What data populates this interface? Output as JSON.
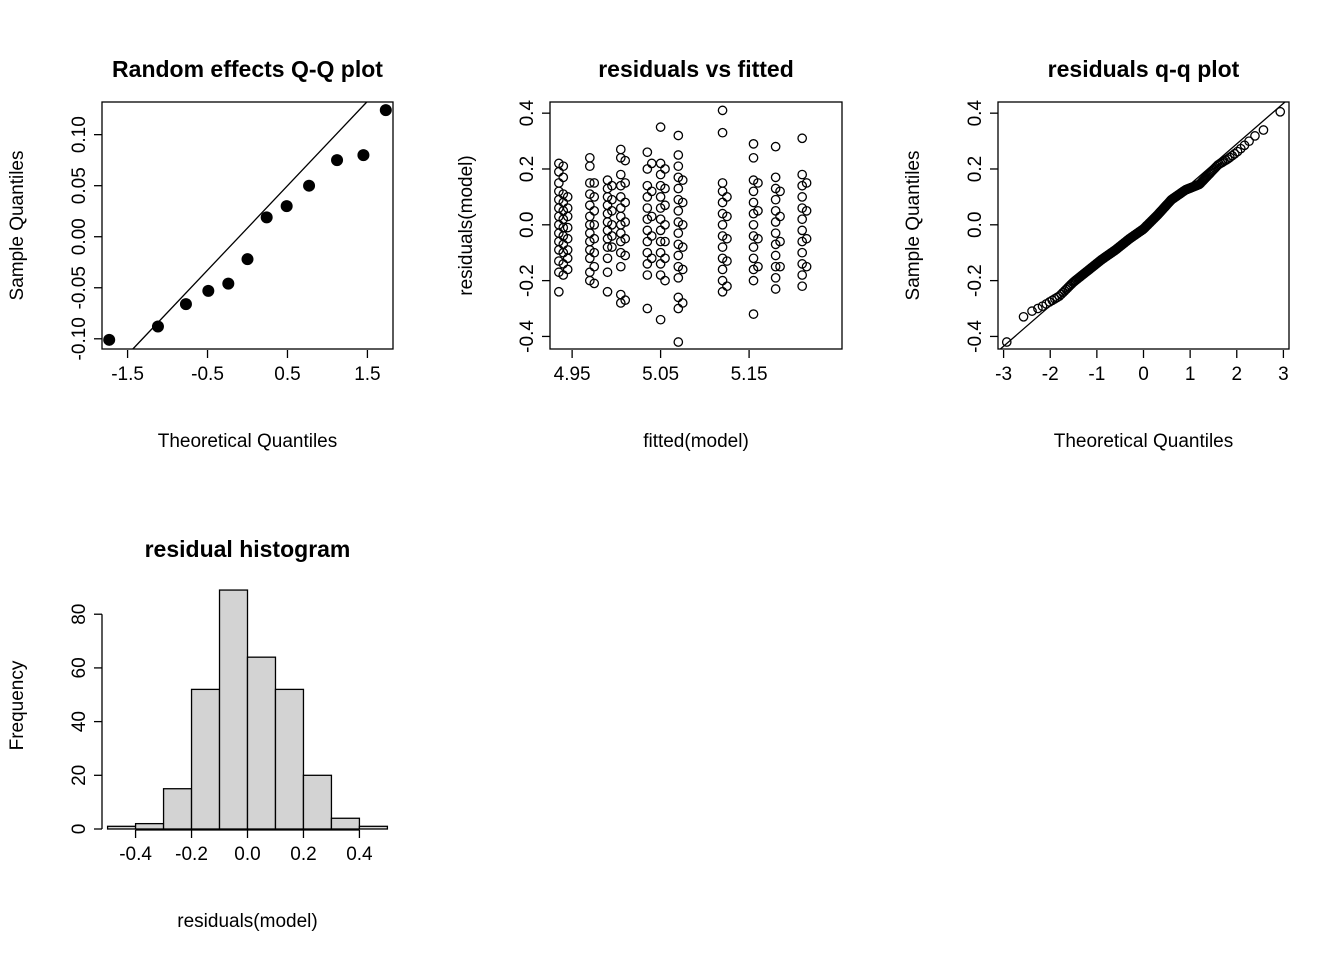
{
  "chart_data": [
    {
      "type": "scatter",
      "title": "Random effects Q-Q plot",
      "xlabel": "Theoretical Quantiles",
      "ylabel": "Sample Quantiles",
      "xlim": [
        -1.82,
        1.82
      ],
      "ylim": [
        -0.11,
        0.132
      ],
      "xticks": [
        -1.5,
        -0.5,
        0.5,
        1.5
      ],
      "xtick_labels": [
        "-1.5",
        "-0.5",
        "0.5",
        "1.5"
      ],
      "yticks": [
        -0.1,
        -0.05,
        0.0,
        0.05,
        0.1
      ],
      "ytick_labels": [
        "-0.10",
        "-0.05",
        "0.00",
        "0.05",
        "0.10"
      ],
      "point_style": "filled",
      "points": [
        {
          "x": -1.73,
          "y": -0.101
        },
        {
          "x": -1.12,
          "y": -0.088
        },
        {
          "x": -0.77,
          "y": -0.066
        },
        {
          "x": -0.49,
          "y": -0.053
        },
        {
          "x": -0.24,
          "y": -0.046
        },
        {
          "x": 0.0,
          "y": -0.022
        },
        {
          "x": 0.24,
          "y": 0.019
        },
        {
          "x": 0.49,
          "y": 0.03
        },
        {
          "x": 0.77,
          "y": 0.05
        },
        {
          "x": 1.12,
          "y": 0.075
        },
        {
          "x": 1.45,
          "y": 0.08
        },
        {
          "x": 1.73,
          "y": 0.124
        }
      ],
      "reference_line": {
        "intercept": 0.0086,
        "slope": 0.0827
      }
    },
    {
      "type": "scatter",
      "title": "residuals vs fitted",
      "xlabel": "fitted(model)",
      "ylabel": "residuals(model)",
      "xlim": [
        4.925,
        5.255
      ],
      "ylim": [
        -0.445,
        0.44
      ],
      "xticks": [
        4.95,
        5.05,
        5.15
      ],
      "xtick_labels": [
        "4.95",
        "5.05",
        "5.15"
      ],
      "yticks": [
        -0.4,
        -0.2,
        0.0,
        0.2,
        0.4
      ],
      "ytick_labels": [
        "-0.4",
        "-0.2",
        "0.0",
        "0.2",
        "0.4"
      ],
      "point_style": "open",
      "groups": [
        {
          "x": 4.935,
          "y": [
            0.22,
            0.19,
            0.15,
            0.12,
            0.09,
            0.06,
            0.03,
            0.0,
            -0.03,
            -0.06,
            -0.09,
            -0.13,
            -0.17,
            -0.24
          ]
        },
        {
          "x": 4.94,
          "y": [
            0.21,
            0.17,
            0.11,
            0.08,
            0.05,
            0.02,
            -0.01,
            -0.04,
            -0.07,
            -0.1,
            -0.14,
            -0.18
          ]
        },
        {
          "x": 4.945,
          "y": [
            0.1,
            0.06,
            0.03,
            -0.01,
            -0.05,
            -0.09,
            -0.12,
            -0.16
          ]
        },
        {
          "x": 4.97,
          "y": [
            0.24,
            0.21,
            0.15,
            0.11,
            0.07,
            0.03,
            0.0,
            -0.03,
            -0.06,
            -0.09,
            -0.12,
            -0.17,
            -0.2
          ]
        },
        {
          "x": 4.975,
          "y": [
            0.15,
            0.1,
            0.05,
            0.0,
            -0.05,
            -0.1,
            -0.15,
            -0.21
          ]
        },
        {
          "x": 4.99,
          "y": [
            0.16,
            0.13,
            0.1,
            0.07,
            0.04,
            0.01,
            -0.02,
            -0.05,
            -0.08,
            -0.12,
            -0.17,
            -0.24
          ]
        },
        {
          "x": 4.995,
          "y": [
            0.14,
            0.09,
            0.05,
            0.0,
            -0.04,
            -0.08
          ]
        },
        {
          "x": 5.005,
          "y": [
            0.27,
            0.24,
            0.18,
            0.14,
            0.1,
            0.06,
            0.03,
            0.0,
            -0.03,
            -0.06,
            -0.1,
            -0.15,
            -0.25,
            -0.28
          ]
        },
        {
          "x": 5.01,
          "y": [
            0.23,
            0.15,
            0.08,
            0.01,
            -0.05,
            -0.11,
            -0.27
          ]
        },
        {
          "x": 5.035,
          "y": [
            0.26,
            0.2,
            0.14,
            0.1,
            0.06,
            0.02,
            -0.02,
            -0.06,
            -0.1,
            -0.14,
            -0.18,
            -0.3
          ]
        },
        {
          "x": 5.04,
          "y": [
            0.22,
            0.12,
            0.03,
            -0.04,
            -0.12
          ]
        },
        {
          "x": 5.05,
          "y": [
            0.35,
            0.22,
            0.18,
            0.14,
            0.1,
            0.06,
            0.02,
            -0.02,
            -0.06,
            -0.1,
            -0.14,
            -0.18,
            -0.34
          ]
        },
        {
          "x": 5.055,
          "y": [
            0.2,
            0.13,
            0.07,
            0.0,
            -0.06,
            -0.12,
            -0.2
          ]
        },
        {
          "x": 5.07,
          "y": [
            0.32,
            0.25,
            0.21,
            0.17,
            0.13,
            0.09,
            0.05,
            0.01,
            -0.03,
            -0.07,
            -0.11,
            -0.15,
            -0.19,
            -0.26,
            -0.3,
            -0.42
          ]
        },
        {
          "x": 5.075,
          "y": [
            0.16,
            0.08,
            0.0,
            -0.08,
            -0.16,
            -0.28
          ]
        },
        {
          "x": 5.12,
          "y": [
            0.41,
            0.33,
            0.15,
            0.12,
            0.08,
            0.04,
            0.0,
            -0.04,
            -0.08,
            -0.12,
            -0.16,
            -0.2,
            -0.24
          ]
        },
        {
          "x": 5.125,
          "y": [
            0.1,
            0.03,
            -0.05,
            -0.13,
            -0.22
          ]
        },
        {
          "x": 5.155,
          "y": [
            0.29,
            0.24,
            0.16,
            0.12,
            0.08,
            0.04,
            0.0,
            -0.04,
            -0.08,
            -0.12,
            -0.16,
            -0.2,
            -0.32
          ]
        },
        {
          "x": 5.16,
          "y": [
            0.15,
            0.05,
            -0.05,
            -0.15
          ]
        },
        {
          "x": 5.18,
          "y": [
            0.28,
            0.17,
            0.13,
            0.09,
            0.05,
            0.01,
            -0.03,
            -0.07,
            -0.11,
            -0.15,
            -0.19,
            -0.23
          ]
        },
        {
          "x": 5.185,
          "y": [
            0.12,
            0.03,
            -0.06,
            -0.15
          ]
        },
        {
          "x": 5.21,
          "y": [
            0.31,
            0.18,
            0.14,
            0.1,
            0.06,
            0.02,
            -0.02,
            -0.06,
            -0.1,
            -0.14,
            -0.18,
            -0.22
          ]
        },
        {
          "x": 5.215,
          "y": [
            0.15,
            0.05,
            -0.05,
            -0.15
          ]
        }
      ]
    },
    {
      "type": "scatter",
      "title": "residuals q-q plot",
      "xlabel": "Theoretical Quantiles",
      "ylabel": "Sample Quantiles",
      "xlim": [
        -3.12,
        3.12
      ],
      "ylim": [
        -0.445,
        0.44
      ],
      "xticks": [
        -3,
        -2,
        -1,
        0,
        1,
        2,
        3
      ],
      "xtick_labels": [
        "-3",
        "-2",
        "-1",
        "0",
        "1",
        "2",
        "3"
      ],
      "yticks": [
        -0.4,
        -0.2,
        0.0,
        0.2,
        0.4
      ],
      "ytick_labels": [
        "-0.4",
        "-0.2",
        "0.0",
        "0.2",
        "0.4"
      ],
      "point_style": "open",
      "n_points": 297,
      "sample_quantile_knots": {
        "z": [
          -2.93,
          -2.62,
          -2.4,
          -2.2,
          -2.0,
          -1.8,
          -1.5,
          -1.2,
          -0.9,
          -0.6,
          -0.3,
          0.0,
          0.3,
          0.6,
          0.9,
          1.2,
          1.4,
          1.6,
          1.8,
          2.0,
          2.2,
          2.4,
          2.62,
          2.93
        ],
        "y": [
          -0.42,
          -0.335,
          -0.31,
          -0.295,
          -0.275,
          -0.255,
          -0.205,
          -0.165,
          -0.125,
          -0.09,
          -0.05,
          -0.015,
          0.035,
          0.09,
          0.125,
          0.145,
          0.18,
          0.215,
          0.235,
          0.26,
          0.29,
          0.32,
          0.345,
          0.405
        ]
      },
      "reference_line": {
        "intercept": 0.0,
        "slope": 0.145
      }
    },
    {
      "type": "bar",
      "title": "residual histogram",
      "xlabel": "residuals(model)",
      "ylabel": "Frequency",
      "xlim": [
        -0.52,
        0.52
      ],
      "ylim": [
        0,
        92
      ],
      "xticks": [
        -0.4,
        -0.2,
        0.0,
        0.2,
        0.4
      ],
      "xtick_labels": [
        "-0.4",
        "-0.2",
        "0.0",
        "0.2",
        "0.4"
      ],
      "yticks": [
        0,
        20,
        40,
        60,
        80
      ],
      "ytick_labels": [
        "0",
        "20",
        "40",
        "60",
        "80"
      ],
      "bin_edges": [
        -0.5,
        -0.4,
        -0.3,
        -0.2,
        -0.1,
        0.0,
        0.1,
        0.2,
        0.3,
        0.4,
        0.5
      ],
      "counts": [
        1,
        2,
        15,
        52,
        89,
        64,
        52,
        20,
        4,
        1
      ],
      "bar_color": "#d3d3d3"
    }
  ]
}
